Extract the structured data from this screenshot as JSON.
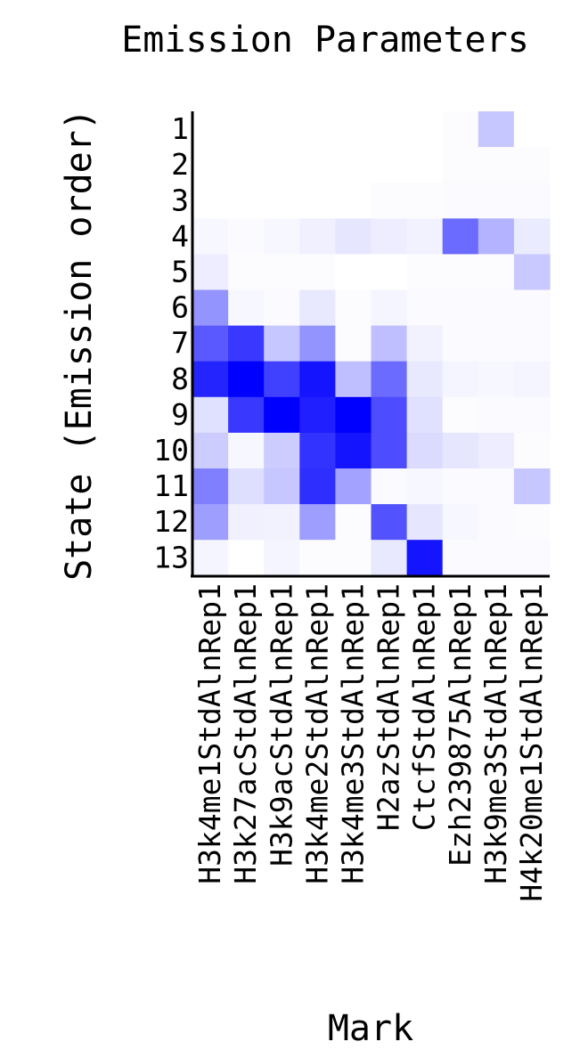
{
  "chart_data": {
    "type": "heatmap",
    "title": "Emission Parameters",
    "xlabel": "Mark",
    "ylabel": "State (Emission order)",
    "rows": [
      "1",
      "2",
      "3",
      "4",
      "5",
      "6",
      "7",
      "8",
      "9",
      "10",
      "11",
      "12",
      "13"
    ],
    "columns": [
      "H3k4me1StdAlnRep1",
      "H3k27acStdAlnRep1",
      "H3k9acStdAlnRep1",
      "H3k4me2StdAlnRep1",
      "H3k4me3StdAlnRep1",
      "H2azStdAlnRep1",
      "CtcfStdAlnRep1",
      "Ezh239875AlnRep1",
      "H3k9me3StdAlnRep1",
      "H4k20me1StdAlnRep1"
    ],
    "color_min": "#ffffff",
    "color_max": "#0000ff",
    "values": [
      [
        0.0,
        0.0,
        0.0,
        0.0,
        0.0,
        0.0,
        0.0,
        0.01,
        0.22,
        0.0
      ],
      [
        0.0,
        0.0,
        0.0,
        0.0,
        0.0,
        0.0,
        0.0,
        0.01,
        0.01,
        0.01
      ],
      [
        0.0,
        0.0,
        0.0,
        0.0,
        0.0,
        0.01,
        0.01,
        0.02,
        0.02,
        0.02
      ],
      [
        0.03,
        0.02,
        0.03,
        0.06,
        0.1,
        0.07,
        0.05,
        0.58,
        0.3,
        0.08
      ],
      [
        0.07,
        0.01,
        0.01,
        0.01,
        0.0,
        0.0,
        0.01,
        0.01,
        0.01,
        0.21
      ],
      [
        0.42,
        0.03,
        0.02,
        0.09,
        0.01,
        0.04,
        0.02,
        0.02,
        0.02,
        0.02
      ],
      [
        0.65,
        0.78,
        0.22,
        0.42,
        0.01,
        0.25,
        0.05,
        0.02,
        0.02,
        0.02
      ],
      [
        0.86,
        1.0,
        0.75,
        0.92,
        0.25,
        0.58,
        0.09,
        0.04,
        0.03,
        0.04
      ],
      [
        0.12,
        0.78,
        1.0,
        0.88,
        1.0,
        0.7,
        0.12,
        0.01,
        0.02,
        0.02
      ],
      [
        0.2,
        0.03,
        0.2,
        0.8,
        0.92,
        0.7,
        0.14,
        0.1,
        0.07,
        0.01
      ],
      [
        0.5,
        0.13,
        0.22,
        0.82,
        0.36,
        0.02,
        0.03,
        0.02,
        0.02,
        0.22
      ],
      [
        0.38,
        0.06,
        0.05,
        0.38,
        0.01,
        0.68,
        0.1,
        0.03,
        0.02,
        0.01
      ],
      [
        0.04,
        0.0,
        0.04,
        0.01,
        0.01,
        0.09,
        0.92,
        0.02,
        0.02,
        0.02
      ]
    ]
  }
}
